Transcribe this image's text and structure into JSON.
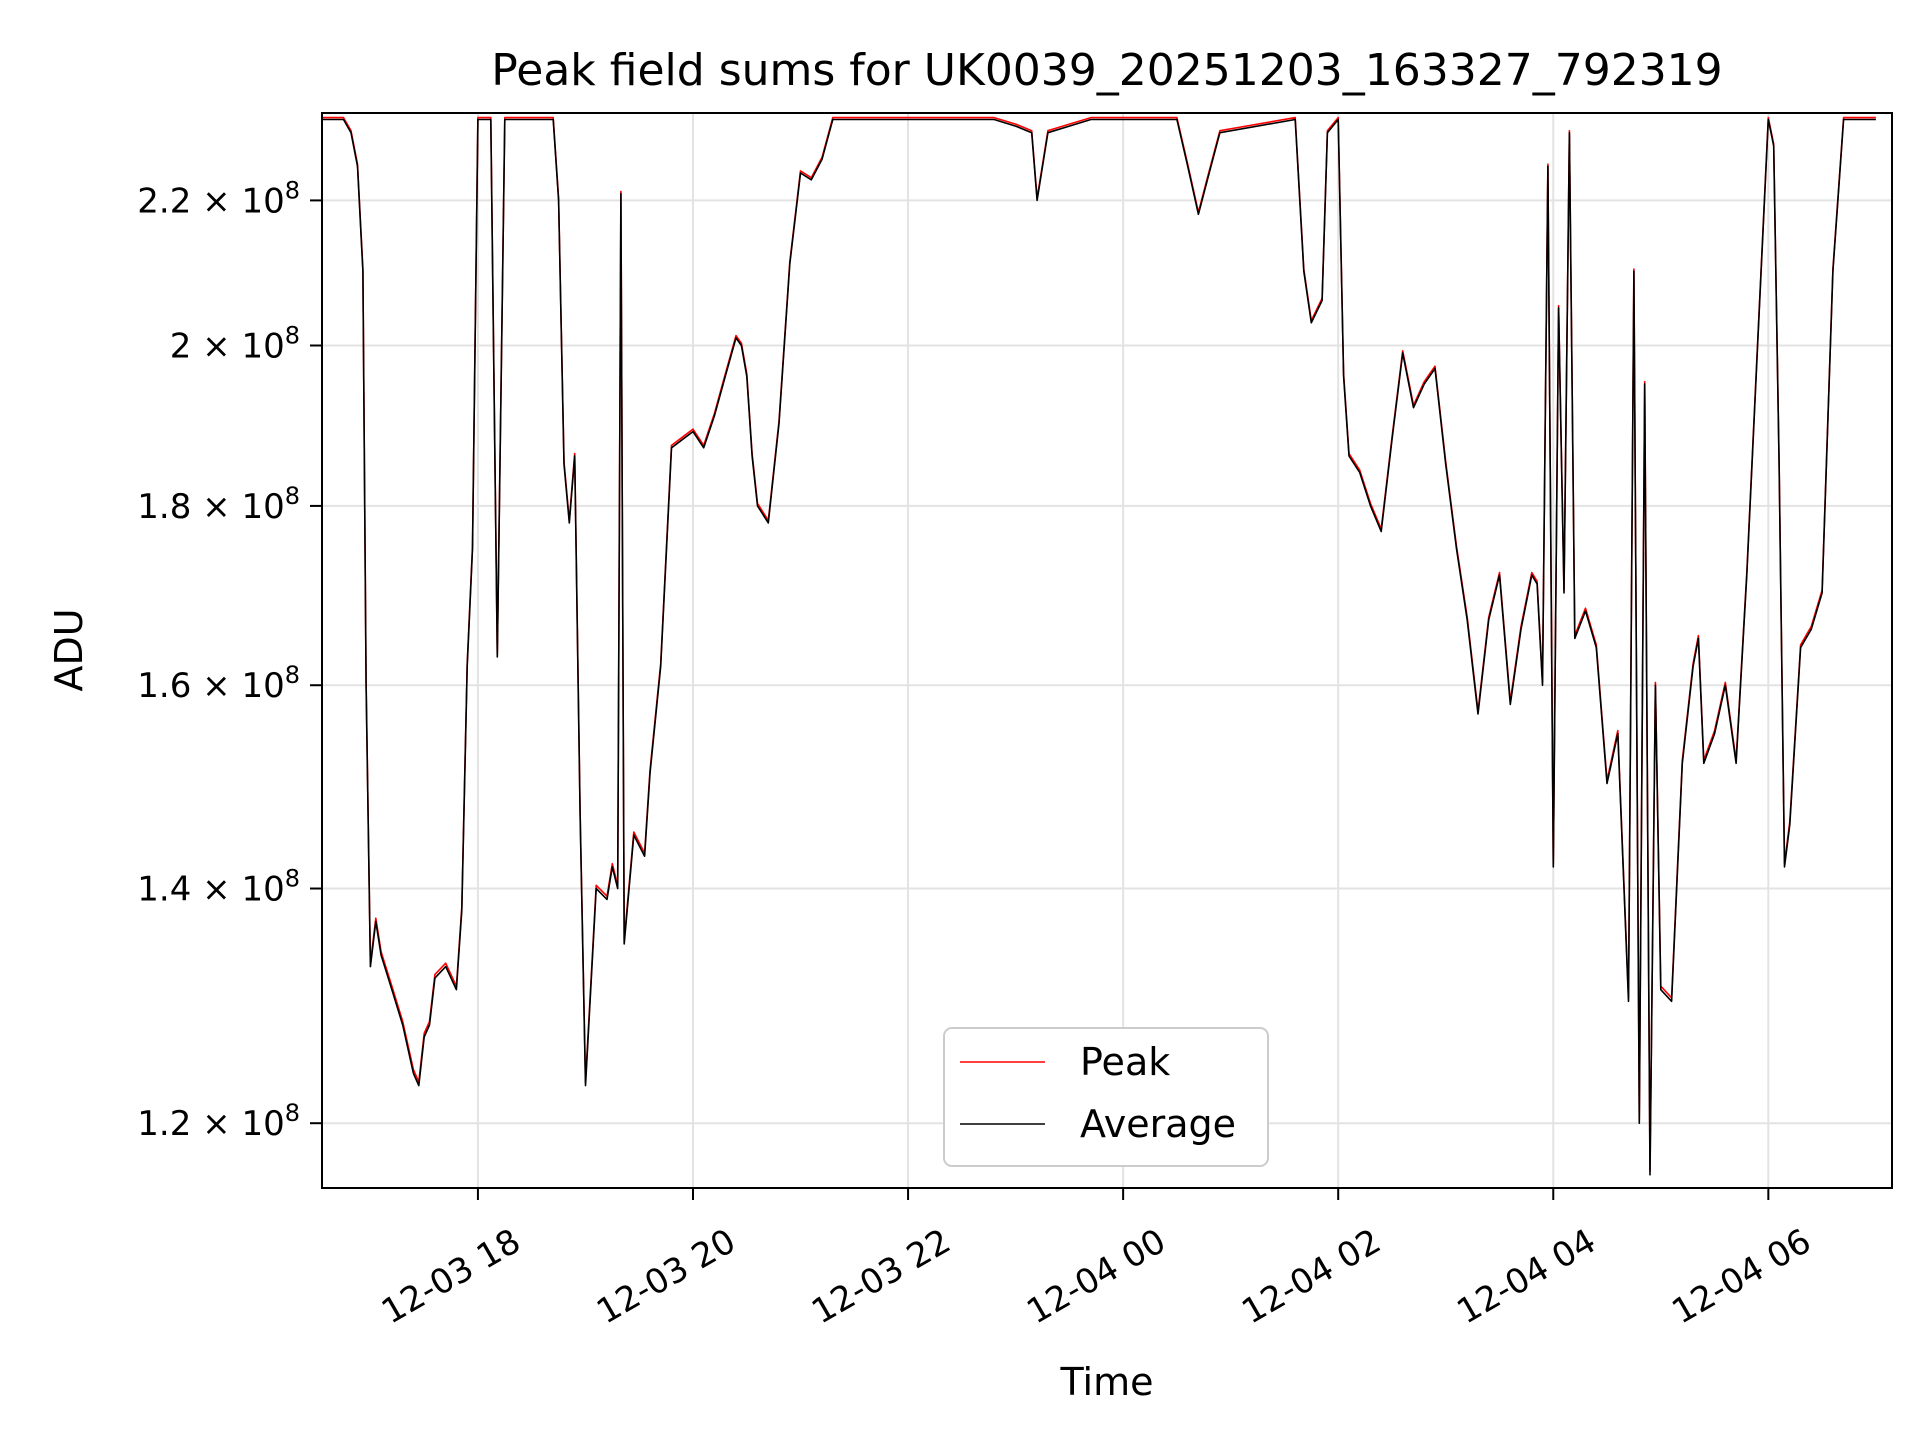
{
  "chart_data": {
    "type": "line",
    "title": "Peak field sums for UK0039_20251203_163327_792319",
    "xlabel": "Time",
    "ylabel": "ADU",
    "yscale": "log",
    "grid": true,
    "legend_position": "bottom-center",
    "xlim": [
      16.55,
      31.15
    ],
    "ylim": [
      115000000.0,
      233000000.0
    ],
    "x_ticks": [
      {
        "value": 18,
        "label": "12-03 18"
      },
      {
        "value": 20,
        "label": "12-03 20"
      },
      {
        "value": 22,
        "label": "12-03 22"
      },
      {
        "value": 24,
        "label": "12-04 00"
      },
      {
        "value": 26,
        "label": "12-04 02"
      },
      {
        "value": 28,
        "label": "12-04 04"
      },
      {
        "value": 30,
        "label": "12-04 06"
      }
    ],
    "y_ticks": [
      {
        "value": 120000000.0,
        "mantissa": "1.2",
        "exponent": "8"
      },
      {
        "value": 140000000.0,
        "mantissa": "1.4",
        "exponent": "8"
      },
      {
        "value": 160000000.0,
        "mantissa": "1.6",
        "exponent": "8"
      },
      {
        "value": 180000000.0,
        "mantissa": "1.8",
        "exponent": "8"
      },
      {
        "value": 200000000.0,
        "mantissa": "2",
        "exponent": "8"
      },
      {
        "value": 220000000.0,
        "mantissa": "2.2",
        "exponent": "8"
      }
    ],
    "series": [
      {
        "name": "Peak",
        "color": "#ff0000",
        "offset": 0.003
      },
      {
        "name": "Average",
        "color": "#000000",
        "offset": 0
      }
    ],
    "points": [
      [
        16.55,
        2.32
      ],
      [
        16.75,
        2.32
      ],
      [
        16.82,
        2.3
      ],
      [
        16.88,
        2.25
      ],
      [
        16.93,
        2.1
      ],
      [
        16.96,
        1.6
      ],
      [
        17.0,
        1.33
      ],
      [
        17.05,
        1.37
      ],
      [
        17.1,
        1.34
      ],
      [
        17.2,
        1.31
      ],
      [
        17.3,
        1.28
      ],
      [
        17.4,
        1.24
      ],
      [
        17.45,
        1.23
      ],
      [
        17.5,
        1.27
      ],
      [
        17.55,
        1.28
      ],
      [
        17.6,
        1.32
      ],
      [
        17.7,
        1.33
      ],
      [
        17.8,
        1.31
      ],
      [
        17.85,
        1.38
      ],
      [
        17.9,
        1.62
      ],
      [
        17.95,
        1.75
      ],
      [
        18.0,
        2.32
      ],
      [
        18.12,
        2.32
      ],
      [
        18.18,
        1.63
      ],
      [
        18.25,
        2.32
      ],
      [
        18.7,
        2.32
      ],
      [
        18.75,
        2.2
      ],
      [
        18.8,
        1.85
      ],
      [
        18.85,
        1.78
      ],
      [
        18.9,
        1.86
      ],
      [
        18.95,
        1.47
      ],
      [
        19.0,
        1.23
      ],
      [
        19.1,
        1.4
      ],
      [
        19.2,
        1.39
      ],
      [
        19.25,
        1.42
      ],
      [
        19.3,
        1.4
      ],
      [
        19.33,
        2.21
      ],
      [
        19.36,
        1.35
      ],
      [
        19.45,
        1.45
      ],
      [
        19.55,
        1.43
      ],
      [
        19.6,
        1.51
      ],
      [
        19.7,
        1.62
      ],
      [
        19.8,
        1.87
      ],
      [
        19.9,
        1.88
      ],
      [
        20.0,
        1.89
      ],
      [
        20.1,
        1.87
      ],
      [
        20.2,
        1.91
      ],
      [
        20.3,
        1.96
      ],
      [
        20.4,
        2.01
      ],
      [
        20.45,
        2.0
      ],
      [
        20.5,
        1.96
      ],
      [
        20.55,
        1.86
      ],
      [
        20.6,
        1.8
      ],
      [
        20.7,
        1.78
      ],
      [
        20.8,
        1.9
      ],
      [
        20.9,
        2.11
      ],
      [
        21.0,
        2.24
      ],
      [
        21.1,
        2.23
      ],
      [
        21.2,
        2.26
      ],
      [
        21.3,
        2.32
      ],
      [
        22.8,
        2.32
      ],
      [
        23.0,
        2.31
      ],
      [
        23.15,
        2.3
      ],
      [
        23.2,
        2.2
      ],
      [
        23.3,
        2.3
      ],
      [
        23.5,
        2.31
      ],
      [
        23.7,
        2.32
      ],
      [
        24.5,
        2.32
      ],
      [
        24.6,
        2.25
      ],
      [
        24.7,
        2.18
      ],
      [
        24.8,
        2.24
      ],
      [
        24.9,
        2.3
      ],
      [
        25.6,
        2.32
      ],
      [
        25.68,
        2.1
      ],
      [
        25.75,
        2.03
      ],
      [
        25.85,
        2.06
      ],
      [
        25.9,
        2.3
      ],
      [
        26.0,
        2.32
      ],
      [
        26.05,
        1.96
      ],
      [
        26.1,
        1.86
      ],
      [
        26.2,
        1.84
      ],
      [
        26.3,
        1.8
      ],
      [
        26.4,
        1.77
      ],
      [
        26.5,
        1.88
      ],
      [
        26.6,
        1.99
      ],
      [
        26.7,
        1.92
      ],
      [
        26.8,
        1.95
      ],
      [
        26.9,
        1.97
      ],
      [
        27.0,
        1.85
      ],
      [
        27.1,
        1.75
      ],
      [
        27.2,
        1.67
      ],
      [
        27.3,
        1.57
      ],
      [
        27.4,
        1.67
      ],
      [
        27.5,
        1.72
      ],
      [
        27.6,
        1.58
      ],
      [
        27.7,
        1.66
      ],
      [
        27.8,
        1.72
      ],
      [
        27.85,
        1.71
      ],
      [
        27.9,
        1.6
      ],
      [
        27.95,
        2.25
      ],
      [
        28.0,
        1.42
      ],
      [
        28.05,
        2.05
      ],
      [
        28.1,
        1.7
      ],
      [
        28.15,
        2.3
      ],
      [
        28.2,
        1.65
      ],
      [
        28.3,
        1.68
      ],
      [
        28.4,
        1.64
      ],
      [
        28.5,
        1.5
      ],
      [
        28.6,
        1.55
      ],
      [
        28.7,
        1.3
      ],
      [
        28.75,
        2.1
      ],
      [
        28.8,
        1.2
      ],
      [
        28.85,
        1.95
      ],
      [
        28.9,
        1.16
      ],
      [
        28.95,
        1.6
      ],
      [
        29.0,
        1.31
      ],
      [
        29.1,
        1.3
      ],
      [
        29.2,
        1.52
      ],
      [
        29.3,
        1.62
      ],
      [
        29.35,
        1.65
      ],
      [
        29.4,
        1.52
      ],
      [
        29.5,
        1.55
      ],
      [
        29.6,
        1.6
      ],
      [
        29.7,
        1.52
      ],
      [
        29.8,
        1.72
      ],
      [
        29.9,
        2.0
      ],
      [
        30.0,
        2.32
      ],
      [
        30.05,
        2.28
      ],
      [
        30.1,
        1.85
      ],
      [
        30.15,
        1.42
      ],
      [
        30.2,
        1.46
      ],
      [
        30.3,
        1.64
      ],
      [
        30.4,
        1.66
      ],
      [
        30.5,
        1.7
      ],
      [
        30.6,
        2.1
      ],
      [
        30.7,
        2.32
      ],
      [
        30.9,
        2.32
      ],
      [
        31.0,
        2.32
      ]
    ]
  }
}
